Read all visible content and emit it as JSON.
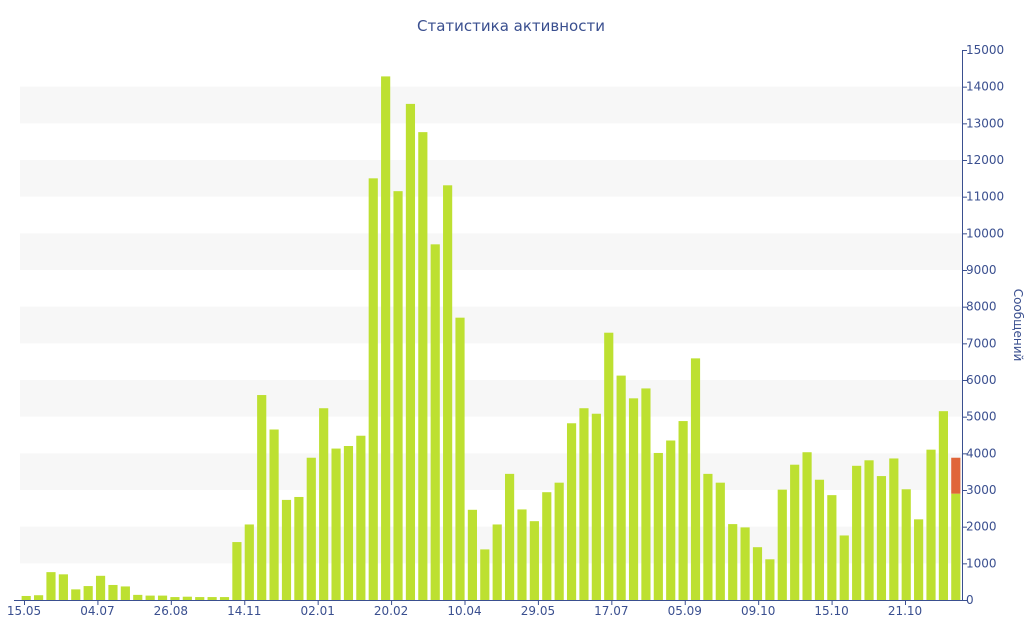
{
  "chart_data": {
    "type": "bar",
    "title": "Статистика активности",
    "xlabel": "",
    "ylabel": "Сообщений",
    "ylim": [
      0,
      15000
    ],
    "y_ticks": [
      0,
      1000,
      2000,
      3000,
      4000,
      5000,
      6000,
      7000,
      8000,
      9000,
      10000,
      11000,
      12000,
      13000,
      14000,
      15000
    ],
    "grid": "alternating horizontal bands",
    "legend": "none",
    "x_tick_labels": [
      "15.05",
      "04.07",
      "26.08",
      "14.11",
      "02.01",
      "20.02",
      "10.04",
      "29.05",
      "17.07",
      "05.09",
      "09.10",
      "15.10",
      "21.10"
    ],
    "values": [
      110,
      130,
      760,
      700,
      290,
      380,
      660,
      410,
      370,
      140,
      120,
      120,
      80,
      90,
      80,
      80,
      80,
      1580,
      2060,
      5590,
      4650,
      2730,
      2810,
      3880,
      5230,
      4130,
      4200,
      4480,
      11500,
      14280,
      11150,
      13530,
      12760,
      9700,
      11310,
      7700,
      2460,
      1380,
      2060,
      3440,
      2470,
      2150,
      2940,
      3200,
      4820,
      5230,
      5080,
      7290,
      6120,
      5500,
      5770,
      4010,
      4350,
      4880,
      6590,
      3440,
      3200,
      2070,
      1980,
      1440,
      1110,
      3010,
      3690,
      4030,
      3280,
      2860,
      1760,
      3660,
      3810,
      3380,
      3860,
      3020,
      2200,
      4100,
      5150
    ],
    "partial_bar": {
      "total": 3880,
      "highlight_start": 2900
    },
    "colors": {
      "bars": "#bde031",
      "partial": "#e0653a",
      "band": "#f7f7f7",
      "text": "#3a4f8f",
      "axis": "#3a4f8f"
    }
  }
}
